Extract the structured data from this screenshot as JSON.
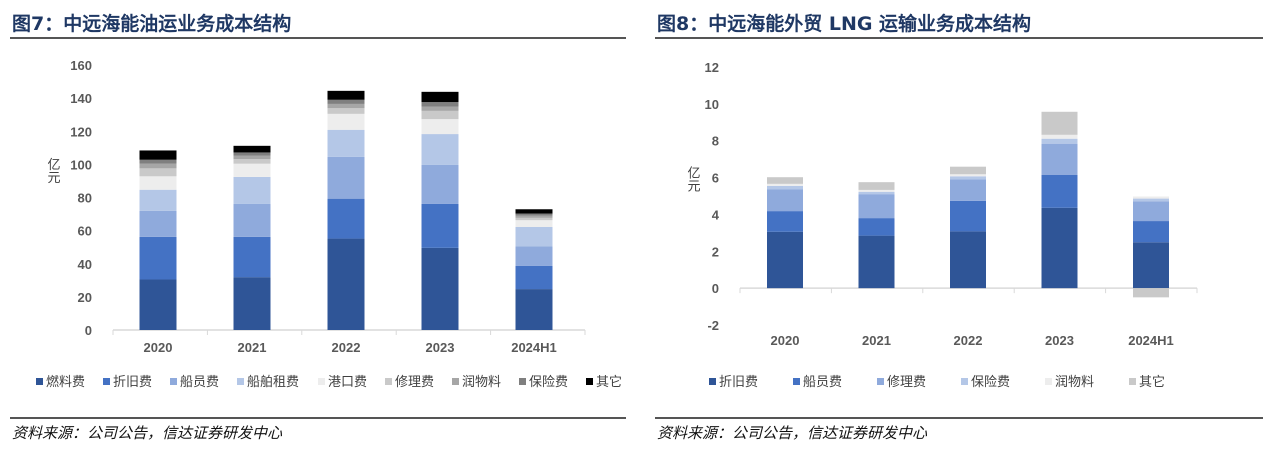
{
  "chart_data": [
    {
      "type": "bar",
      "stacked": true,
      "title": "图7：中远海能油运业务成本结构",
      "ylabel": "亿元",
      "ylim": [
        0,
        160
      ],
      "yticks": [
        0,
        20,
        40,
        60,
        80,
        100,
        120,
        140,
        160
      ],
      "categories": [
        "2020",
        "2021",
        "2022",
        "2023",
        "2024H1"
      ],
      "legend_position": "bottom",
      "series": [
        {
          "name": "燃料费",
          "color": "#2f5597",
          "values": [
            30.5,
            31.9,
            55.2,
            49.6,
            24.7
          ]
        },
        {
          "name": "折旧费",
          "color": "#4472c4",
          "values": [
            25.7,
            24.3,
            24.1,
            26.5,
            14.1
          ]
        },
        {
          "name": "船员费",
          "color": "#8faadc",
          "values": [
            15.7,
            19.9,
            25.3,
            23.7,
            11.6
          ]
        },
        {
          "name": "船舶租费",
          "color": "#b4c7e7",
          "values": [
            12.8,
            16.3,
            16.3,
            18.5,
            11.8
          ]
        },
        {
          "name": "港口费",
          "color": "#ededed",
          "values": [
            8.1,
            8.0,
            9.6,
            9.0,
            4.1
          ]
        },
        {
          "name": "修理费",
          "color": "#c9c9c9",
          "values": [
            4.8,
            2.8,
            3.4,
            5.0,
            1.4
          ]
        },
        {
          "name": "润物料",
          "color": "#a6a6a6",
          "values": [
            2.8,
            2.0,
            2.6,
            2.6,
            1.4
          ]
        },
        {
          "name": "保险费",
          "color": "#7f7f7f",
          "values": [
            2.4,
            2.0,
            2.5,
            2.7,
            1.2
          ]
        },
        {
          "name": "其它",
          "color": "#000000",
          "values": [
            5.6,
            4.0,
            5.4,
            6.2,
            2.6
          ]
        }
      ],
      "source": "资料来源：公司公告，信达证券研发中心"
    },
    {
      "type": "bar",
      "stacked": true,
      "title": "图8：中远海能外贸 LNG 运输业务成本结构",
      "ylabel": "亿元",
      "ylim": [
        -2,
        12
      ],
      "yticks": [
        -2,
        0,
        2,
        4,
        6,
        8,
        10,
        12
      ],
      "categories": [
        "2020",
        "2021",
        "2022",
        "2023",
        "2024H1"
      ],
      "legend_position": "bottom",
      "series": [
        {
          "name": "折旧费",
          "color": "#2f5597",
          "values": [
            3.06,
            2.85,
            3.08,
            4.36,
            2.49
          ]
        },
        {
          "name": "船员费",
          "color": "#4472c4",
          "values": [
            1.12,
            0.95,
            1.66,
            1.78,
            1.15
          ]
        },
        {
          "name": "修理费",
          "color": "#8faadc",
          "values": [
            1.19,
            1.3,
            1.17,
            1.7,
            1.06
          ]
        },
        {
          "name": "保险费",
          "color": "#b4c7e7",
          "values": [
            0.18,
            0.13,
            0.16,
            0.27,
            0.16
          ]
        },
        {
          "name": "润物料",
          "color": "#ededed",
          "values": [
            0.11,
            0.1,
            0.11,
            0.21,
            0.11
          ]
        },
        {
          "name": "其它",
          "color": "#c9c9c9",
          "values": [
            0.36,
            0.42,
            0.41,
            1.25,
            -0.5
          ]
        }
      ],
      "source": "资料来源：公司公告，信达证券研发中心"
    }
  ]
}
